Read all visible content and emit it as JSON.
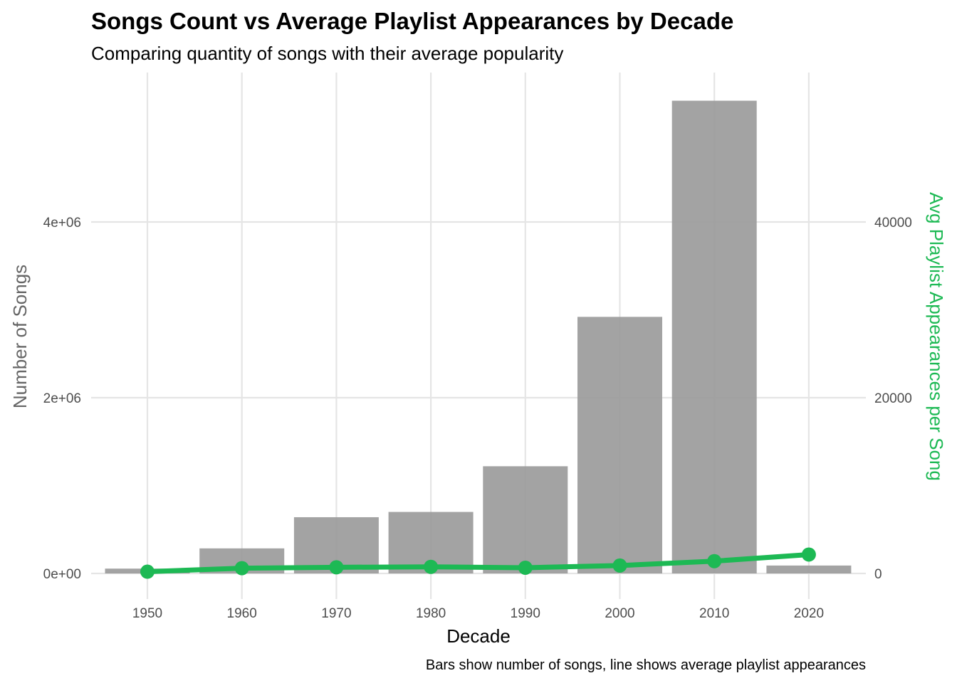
{
  "chart_data": {
    "type": "bar+line",
    "title": "Songs Count vs Average Playlist Appearances by Decade",
    "subtitle": "Comparing quantity of songs with their average popularity",
    "caption": "Bars show number of songs, line shows average playlist appearances",
    "xlabel": "Decade",
    "ylabel_left": "Number of Songs",
    "ylabel_right": "Avg Playlist Appearances per Song",
    "categories": [
      "1950",
      "1960",
      "1970",
      "1980",
      "1990",
      "2000",
      "2010",
      "2020"
    ],
    "series": [
      {
        "name": "Number of Songs",
        "type": "bar",
        "axis": "left",
        "color": "#999999",
        "values": [
          55000,
          285000,
          640000,
          700000,
          1220000,
          2920000,
          5380000,
          90000
        ]
      },
      {
        "name": "Avg Playlist Appearances per Song",
        "type": "line",
        "axis": "right",
        "color": "#1DB954",
        "values": [
          200,
          600,
          700,
          750,
          650,
          900,
          1400,
          2150
        ]
      }
    ],
    "ylim_left": [
      0,
      5500000
    ],
    "ylim_right": [
      0,
      55000
    ],
    "yticks_left": [
      {
        "value": 0,
        "label": "0e+00"
      },
      {
        "value": 2000000,
        "label": "2e+06"
      },
      {
        "value": 4000000,
        "label": "4e+06"
      }
    ],
    "yticks_right": [
      {
        "value": 0,
        "label": "0"
      },
      {
        "value": 20000,
        "label": "20000"
      },
      {
        "value": 40000,
        "label": "40000"
      }
    ],
    "grid": true,
    "legend": "none",
    "colors": {
      "bar": "#999999",
      "line": "#1DB954",
      "grid": "#e5e5e5",
      "right_axis_title": "#1DB954",
      "left_axis_title": "#666666"
    }
  }
}
